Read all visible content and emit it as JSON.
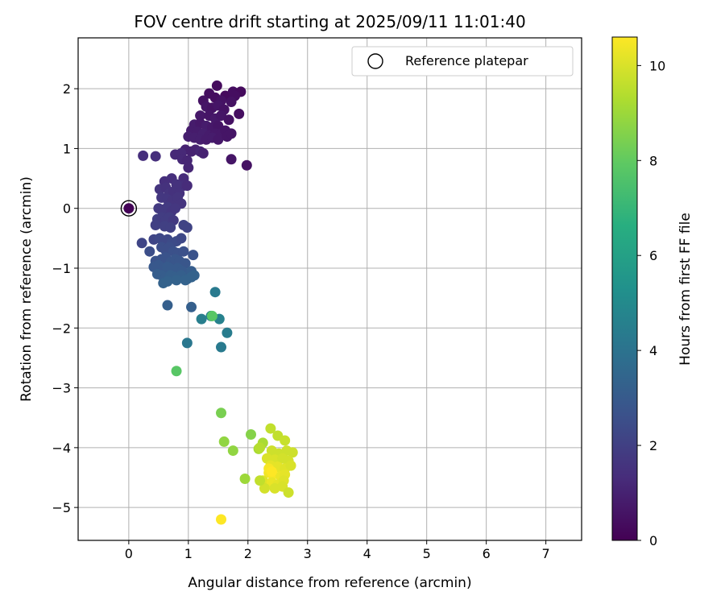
{
  "chart_data": {
    "type": "scatter",
    "title": "FOV centre drift starting at 2025/09/11 11:01:40",
    "xlabel": "Angular distance from reference (arcmin)",
    "ylabel": "Rotation from reference (arcmin)",
    "xlim": [
      -0.85,
      7.6
    ],
    "ylim": [
      -5.55,
      2.85
    ],
    "xticks": [
      "0",
      "1",
      "2",
      "3",
      "4",
      "5",
      "6",
      "7"
    ],
    "yticks": [
      "−5",
      "−4",
      "−3",
      "−2",
      "−1",
      "0",
      "1",
      "2"
    ],
    "grid": true,
    "legend": {
      "placement": "top-right",
      "label": "Reference platepar"
    },
    "reference_point": {
      "x": 0,
      "y": 0
    },
    "colorbar": {
      "label": "Hours from first FF file",
      "range": [
        0,
        10.6
      ],
      "ticks": [
        "0",
        "2",
        "4",
        "6",
        "8",
        "10"
      ],
      "colormap": "viridis"
    },
    "points": [
      [
        0.0,
        0.0,
        0.1
      ],
      [
        1.48,
        2.05,
        0.3
      ],
      [
        1.35,
        1.92,
        0.4
      ],
      [
        1.62,
        1.88,
        0.3
      ],
      [
        1.75,
        1.95,
        0.4
      ],
      [
        1.88,
        1.95,
        0.3
      ],
      [
        1.25,
        1.8,
        0.5
      ],
      [
        1.45,
        1.85,
        0.4
      ],
      [
        1.55,
        1.8,
        0.5
      ],
      [
        1.78,
        1.88,
        0.4
      ],
      [
        1.72,
        1.78,
        0.5
      ],
      [
        1.3,
        1.7,
        0.6
      ],
      [
        1.4,
        1.68,
        0.5
      ],
      [
        1.5,
        1.72,
        0.6
      ],
      [
        1.6,
        1.65,
        0.5
      ],
      [
        1.85,
        1.58,
        0.4
      ],
      [
        1.2,
        1.55,
        0.7
      ],
      [
        1.35,
        1.55,
        0.6
      ],
      [
        1.45,
        1.5,
        0.7
      ],
      [
        1.55,
        1.55,
        0.6
      ],
      [
        1.68,
        1.48,
        0.5
      ],
      [
        1.1,
        1.4,
        0.8
      ],
      [
        1.2,
        1.42,
        0.7
      ],
      [
        1.3,
        1.38,
        0.8
      ],
      [
        1.4,
        1.35,
        0.7
      ],
      [
        1.5,
        1.38,
        0.6
      ],
      [
        1.05,
        1.3,
        0.8
      ],
      [
        1.15,
        1.28,
        0.8
      ],
      [
        1.25,
        1.25,
        0.9
      ],
      [
        1.35,
        1.22,
        0.8
      ],
      [
        1.45,
        1.25,
        0.7
      ],
      [
        1.55,
        1.25,
        0.7
      ],
      [
        1.62,
        1.3,
        0.6
      ],
      [
        1.0,
        1.2,
        0.9
      ],
      [
        1.1,
        1.18,
        0.9
      ],
      [
        1.2,
        1.15,
        0.9
      ],
      [
        1.3,
        1.15,
        0.8
      ],
      [
        1.4,
        1.18,
        0.8
      ],
      [
        1.5,
        1.15,
        0.7
      ],
      [
        1.65,
        1.2,
        0.6
      ],
      [
        1.72,
        1.25,
        0.6
      ],
      [
        0.95,
        0.98,
        1.0
      ],
      [
        1.05,
        0.95,
        1.0
      ],
      [
        1.12,
        0.98,
        1.0
      ],
      [
        1.2,
        0.95,
        1.1
      ],
      [
        1.25,
        0.92,
        1.0
      ],
      [
        1.72,
        0.82,
        0.6
      ],
      [
        1.98,
        0.72,
        0.5
      ],
      [
        0.78,
        0.9,
        1.2
      ],
      [
        0.88,
        0.92,
        1.2
      ],
      [
        0.9,
        0.82,
        1.2
      ],
      [
        0.98,
        0.8,
        1.1
      ],
      [
        1.0,
        0.68,
        1.1
      ],
      [
        0.24,
        0.88,
        1.4
      ],
      [
        0.45,
        0.87,
        1.4
      ],
      [
        0.92,
        0.5,
        1.3
      ],
      [
        0.72,
        0.5,
        1.4
      ],
      [
        0.6,
        0.45,
        1.4
      ],
      [
        0.92,
        0.38,
        1.4
      ],
      [
        0.98,
        0.38,
        1.3
      ],
      [
        0.8,
        0.4,
        1.5
      ],
      [
        0.52,
        0.32,
        1.6
      ],
      [
        0.62,
        0.35,
        1.5
      ],
      [
        0.68,
        0.25,
        1.6
      ],
      [
        0.75,
        0.28,
        1.5
      ],
      [
        0.85,
        0.25,
        1.5
      ],
      [
        0.55,
        0.18,
        1.7
      ],
      [
        0.65,
        0.15,
        1.7
      ],
      [
        0.72,
        0.12,
        1.6
      ],
      [
        0.82,
        0.18,
        1.6
      ],
      [
        0.88,
        0.08,
        1.6
      ],
      [
        0.5,
        0.0,
        1.8
      ],
      [
        0.58,
        -0.02,
        1.8
      ],
      [
        0.65,
        0.02,
        1.8
      ],
      [
        0.72,
        -0.05,
        1.7
      ],
      [
        0.78,
        0.0,
        1.7
      ],
      [
        0.48,
        -0.18,
        2.0
      ],
      [
        0.55,
        -0.15,
        1.9
      ],
      [
        0.62,
        -0.2,
        1.9
      ],
      [
        0.68,
        -0.15,
        1.9
      ],
      [
        0.75,
        -0.2,
        1.8
      ],
      [
        0.45,
        -0.28,
        2.0
      ],
      [
        0.6,
        -0.3,
        2.0
      ],
      [
        0.7,
        -0.32,
        2.0
      ],
      [
        0.92,
        -0.28,
        2.1
      ],
      [
        0.98,
        -0.32,
        2.1
      ],
      [
        0.22,
        -0.58,
        2.2
      ],
      [
        0.42,
        -0.52,
        2.2
      ],
      [
        0.52,
        -0.5,
        2.3
      ],
      [
        0.58,
        -0.55,
        2.3
      ],
      [
        0.65,
        -0.52,
        2.3
      ],
      [
        0.72,
        -0.58,
        2.4
      ],
      [
        0.8,
        -0.55,
        2.4
      ],
      [
        0.88,
        -0.5,
        2.3
      ],
      [
        0.35,
        -0.72,
        2.5
      ],
      [
        0.55,
        -0.65,
        2.5
      ],
      [
        0.62,
        -0.7,
        2.5
      ],
      [
        0.68,
        -0.65,
        2.5
      ],
      [
        0.75,
        -0.72,
        2.6
      ],
      [
        0.82,
        -0.75,
        2.6
      ],
      [
        0.92,
        -0.72,
        2.6
      ],
      [
        1.08,
        -0.78,
        2.7
      ],
      [
        0.45,
        -0.88,
        2.7
      ],
      [
        0.55,
        -0.85,
        2.7
      ],
      [
        0.62,
        -0.82,
        2.7
      ],
      [
        0.7,
        -0.9,
        2.8
      ],
      [
        0.78,
        -0.85,
        2.8
      ],
      [
        0.85,
        -0.88,
        2.8
      ],
      [
        0.95,
        -0.92,
        2.8
      ],
      [
        0.42,
        -0.98,
        2.9
      ],
      [
        0.5,
        -0.95,
        2.9
      ],
      [
        0.58,
        -1.0,
        2.9
      ],
      [
        0.65,
        -0.98,
        3.0
      ],
      [
        0.72,
        -1.02,
        3.0
      ],
      [
        0.82,
        -1.0,
        3.0
      ],
      [
        0.9,
        -1.05,
        3.0
      ],
      [
        1.05,
        -1.05,
        3.1
      ],
      [
        0.48,
        -1.1,
        3.1
      ],
      [
        0.55,
        -1.12,
        3.1
      ],
      [
        0.62,
        -1.15,
        3.1
      ],
      [
        0.7,
        -1.12,
        3.2
      ],
      [
        0.78,
        -1.15,
        3.2
      ],
      [
        0.88,
        -1.12,
        3.2
      ],
      [
        0.98,
        -1.18,
        3.2
      ],
      [
        1.1,
        -1.12,
        3.3
      ],
      [
        0.58,
        -1.25,
        3.3
      ],
      [
        0.65,
        -1.22,
        3.3
      ],
      [
        0.8,
        -1.2,
        3.3
      ],
      [
        0.95,
        -1.2,
        3.3
      ],
      [
        1.05,
        -1.15,
        3.3
      ],
      [
        0.65,
        -1.62,
        3.2
      ],
      [
        1.05,
        -1.65,
        3.2
      ],
      [
        1.45,
        -1.4,
        4.3
      ],
      [
        1.22,
        -1.85,
        4.5
      ],
      [
        1.38,
        -1.8,
        4.6
      ],
      [
        1.52,
        -1.85,
        4.6
      ],
      [
        1.65,
        -2.08,
        4.4
      ],
      [
        0.98,
        -2.25,
        4.2
      ],
      [
        1.55,
        -2.32,
        4.3
      ],
      [
        1.4,
        -1.8,
        7.8
      ],
      [
        0.8,
        -2.72,
        7.8
      ],
      [
        1.55,
        -3.42,
        8.4
      ],
      [
        2.05,
        -3.78,
        8.6
      ],
      [
        1.6,
        -3.9,
        8.8
      ],
      [
        1.75,
        -4.05,
        8.8
      ],
      [
        1.95,
        -4.52,
        9.0
      ],
      [
        2.38,
        -3.68,
        9.6
      ],
      [
        2.5,
        -3.8,
        9.6
      ],
      [
        2.62,
        -3.88,
        9.7
      ],
      [
        2.25,
        -3.92,
        9.2
      ],
      [
        2.18,
        -4.02,
        9.2
      ],
      [
        2.4,
        -4.05,
        9.8
      ],
      [
        2.52,
        -4.1,
        9.8
      ],
      [
        2.65,
        -4.05,
        9.8
      ],
      [
        2.75,
        -4.08,
        9.8
      ],
      [
        2.32,
        -4.18,
        10.0
      ],
      [
        2.45,
        -4.2,
        10.0
      ],
      [
        2.58,
        -4.18,
        9.9
      ],
      [
        2.68,
        -4.22,
        9.9
      ],
      [
        2.38,
        -4.3,
        10.2
      ],
      [
        2.5,
        -4.32,
        10.2
      ],
      [
        2.62,
        -4.35,
        10.1
      ],
      [
        2.72,
        -4.3,
        10.0
      ],
      [
        2.35,
        -4.42,
        10.4
      ],
      [
        2.42,
        -4.45,
        10.5
      ],
      [
        2.55,
        -4.48,
        10.3
      ],
      [
        2.62,
        -4.45,
        10.2
      ],
      [
        2.25,
        -4.55,
        10.1
      ],
      [
        2.4,
        -4.58,
        10.3
      ],
      [
        2.5,
        -4.62,
        10.2
      ],
      [
        2.6,
        -4.55,
        10.1
      ],
      [
        2.28,
        -4.68,
        9.9
      ],
      [
        2.45,
        -4.68,
        10.0
      ],
      [
        2.58,
        -4.65,
        10.0
      ],
      [
        2.68,
        -4.75,
        9.8
      ],
      [
        2.2,
        -4.55,
        9.6
      ],
      [
        1.55,
        -5.2,
        10.6
      ],
      [
        2.35,
        -4.35,
        10.5
      ],
      [
        2.4,
        -4.4,
        10.6
      ],
      [
        2.2,
        -4.0,
        9.4
      ]
    ]
  }
}
